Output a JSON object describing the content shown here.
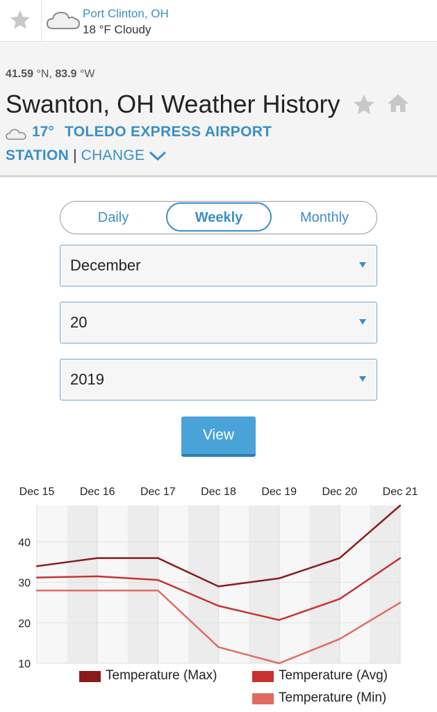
{
  "top_bar": {
    "location": "Port Clinton, OH",
    "condition": "18 °F Cloudy"
  },
  "header": {
    "lat_value": "41.59",
    "lat_unit": "°N,",
    "lon_value": "83.9",
    "lon_unit": "°W",
    "title": "Swanton, OH Weather History",
    "current_temp": "17°",
    "station_name_line1": "TOLEDO EXPRESS AIRPORT",
    "station_name_line2": "STATION",
    "separator": "|",
    "change_label": "CHANGE"
  },
  "tabs": {
    "daily": "Daily",
    "weekly": "Weekly",
    "monthly": "Monthly",
    "active": "weekly"
  },
  "selects": {
    "month": "December",
    "day": "20",
    "year": "2019"
  },
  "view_button": "View",
  "chart_data": {
    "type": "line",
    "categories": [
      "Dec 15",
      "Dec 16",
      "Dec 17",
      "Dec 18",
      "Dec 19",
      "Dec 20",
      "Dec 21"
    ],
    "ylim": [
      10,
      49
    ],
    "yticks": [
      10,
      20,
      30,
      40
    ],
    "grid": true,
    "legend_position": "bottom",
    "series": [
      {
        "name": "Temperature (Max)",
        "color": "#8b1a1a",
        "values": [
          34,
          36,
          36,
          29,
          31,
          36,
          49
        ]
      },
      {
        "name": "Temperature (Avg)",
        "color": "#c83232",
        "values": [
          31.2,
          31.5,
          30.6,
          24.2,
          20.7,
          25.9,
          36
        ]
      },
      {
        "name": "Temperature (Min)",
        "color": "#e06b63",
        "values": [
          28,
          28,
          28,
          14,
          10,
          16,
          25
        ]
      }
    ]
  },
  "colors": {
    "accent": "#3a8fc7",
    "button": "#4aa3d8"
  }
}
